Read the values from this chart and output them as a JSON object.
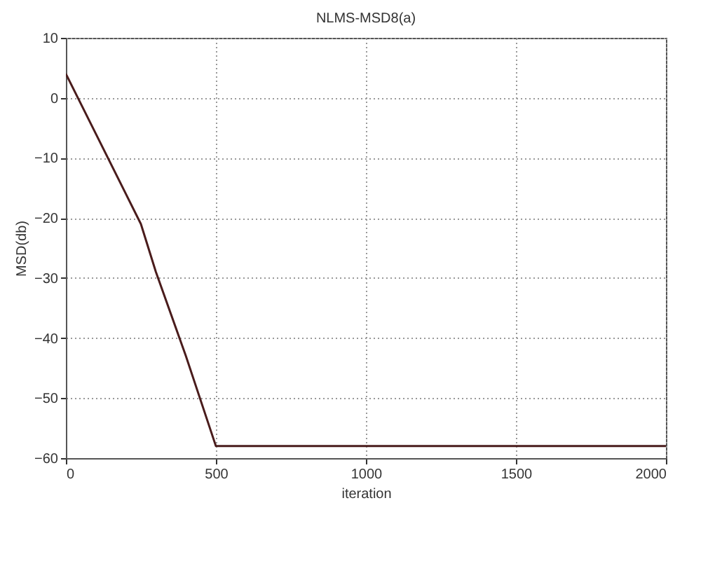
{
  "chart_data": {
    "type": "line",
    "title": "NLMS-MSD8(a)",
    "xlabel": "iteration",
    "ylabel": "MSD(db)",
    "series": [
      {
        "color": "#4a1c1c",
        "x": [
          0,
          100,
          200,
          250,
          300,
          400,
          500,
          2000
        ],
        "values": [
          4,
          -6,
          -16,
          -21,
          -29,
          -43,
          -58,
          -58
        ]
      }
    ],
    "xlim": [
      0,
      2000
    ],
    "xticks": [
      0,
      500,
      1000,
      1500,
      2000
    ],
    "ylim": [
      -60,
      10
    ],
    "yticks": [
      -60,
      -50,
      -40,
      -30,
      -20,
      -10,
      0,
      10
    ],
    "grid": true,
    "line_style": "solid",
    "marker": "none"
  }
}
